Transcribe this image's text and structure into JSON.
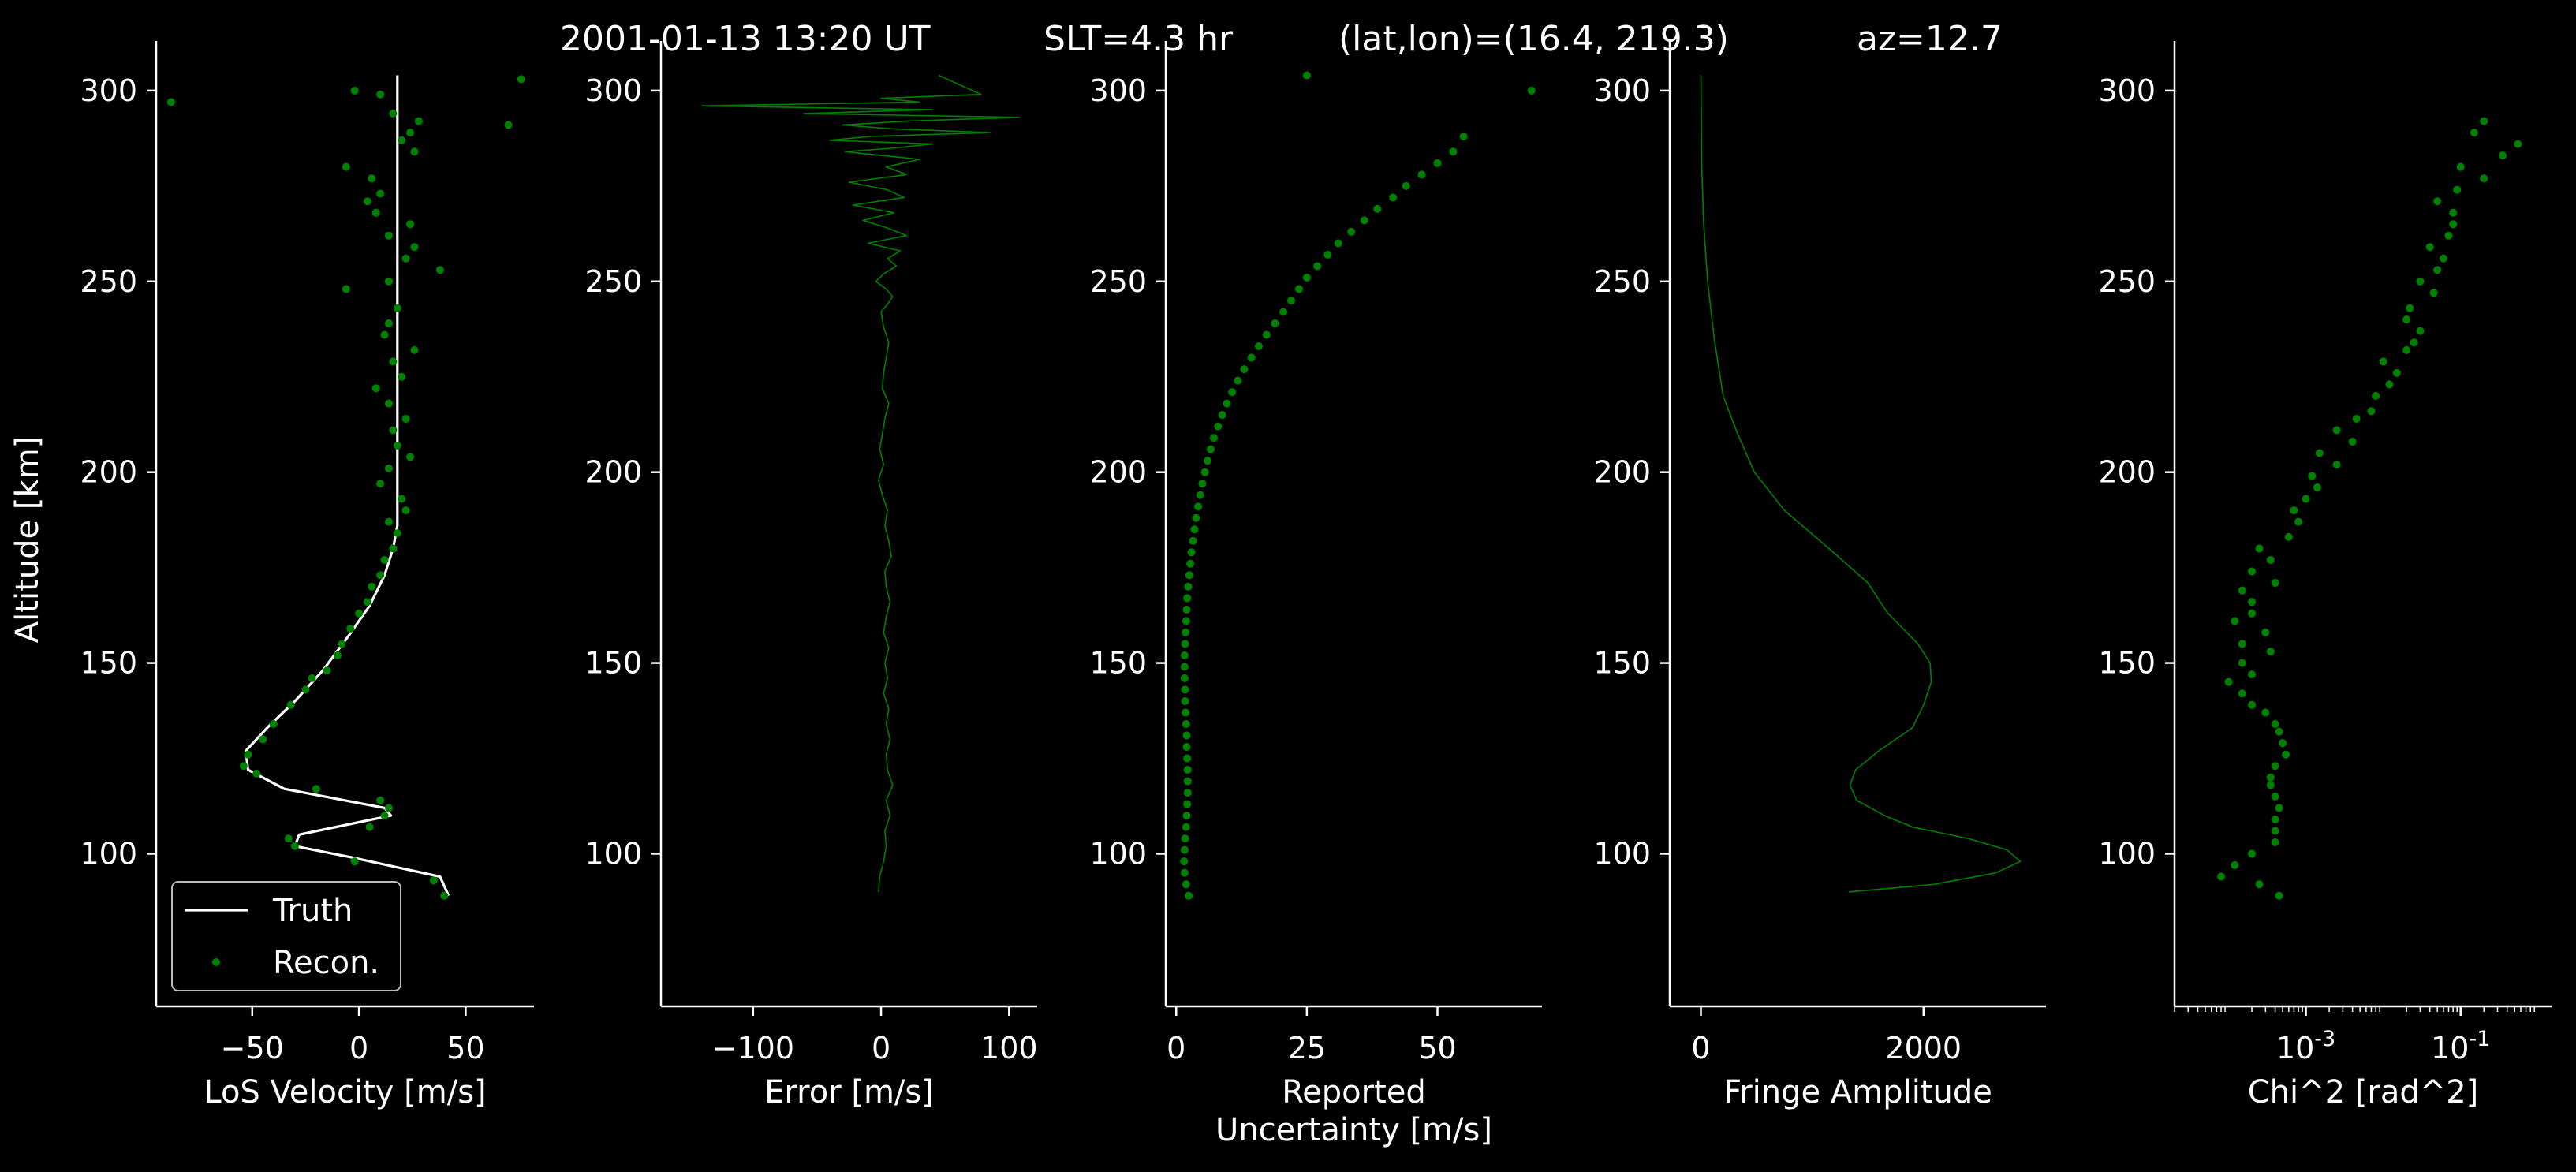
{
  "colors": {
    "background": "#000000",
    "foreground": "#ffffff",
    "truth_line": "#ffffff",
    "reconstruction": "#008000"
  },
  "title_parts": [
    "2001-01-13 13:20 UT",
    "SLT=4.3 hr",
    "(lat,lon)=(16.4, 219.3)",
    "az=12.7"
  ],
  "chart_data": [
    {
      "type": "line+scatter",
      "title": "",
      "xlabel": "LoS Velocity [m/s]",
      "ylabel": "Altitude [km]",
      "xlim": [
        -95,
        82
      ],
      "ylim": [
        60,
        313
      ],
      "xticks": [
        -50,
        0,
        50
      ],
      "yticks": [
        100,
        150,
        200,
        250,
        300
      ],
      "legend": {
        "placement": "lower-left",
        "entries": [
          "Truth",
          "Recon."
        ]
      },
      "series": [
        {
          "name": "Truth",
          "style": "line",
          "x": [
            42,
            38,
            -3,
            -30,
            -28,
            15,
            12,
            -35,
            -52,
            -53,
            -43,
            -30,
            -17,
            -5,
            5,
            12,
            16,
            18,
            18,
            18,
            18,
            18
          ],
          "y": [
            89,
            94,
            99,
            102,
            105,
            110,
            112,
            117,
            122,
            127,
            133,
            140,
            148,
            157,
            165,
            173,
            180,
            186,
            200,
            250,
            290,
            304
          ]
        },
        {
          "name": "Recon.",
          "style": "points",
          "x": [
            40,
            35,
            -2,
            -30,
            -33,
            5,
            12,
            14,
            10,
            -20,
            -48,
            -54,
            -52,
            -45,
            -40,
            -32,
            -25,
            -22,
            -15,
            -10,
            -8,
            -4,
            0,
            4,
            6,
            10,
            12,
            16,
            18,
            14,
            22,
            20,
            10,
            14,
            24,
            18,
            16,
            22,
            14,
            8,
            20,
            16,
            26,
            12,
            14,
            18,
            -6,
            14,
            38,
            22,
            26,
            14,
            24,
            8,
            4,
            10,
            6,
            -6,
            26,
            20,
            24,
            28,
            16,
            10,
            -2,
            76,
            -88,
            70
          ],
          "y": [
            89,
            93,
            98,
            102,
            104,
            107,
            110,
            112,
            114,
            117,
            121,
            123,
            126,
            130,
            134,
            139,
            143,
            146,
            148,
            152,
            155,
            159,
            163,
            166,
            170,
            173,
            177,
            180,
            184,
            187,
            190,
            193,
            197,
            201,
            204,
            207,
            211,
            214,
            218,
            222,
            225,
            229,
            232,
            236,
            239,
            243,
            248,
            250,
            253,
            256,
            259,
            262,
            265,
            268,
            271,
            273,
            277,
            280,
            284,
            287,
            289,
            292,
            294,
            299,
            300,
            303,
            297,
            291
          ]
        }
      ]
    },
    {
      "type": "line",
      "title": "",
      "xlabel": "Error [m/s]",
      "ylabel": "",
      "xlim": [
        -172,
        122
      ],
      "ylim": [
        60,
        313
      ],
      "xticks": [
        -100,
        0,
        100
      ],
      "yticks": [
        100,
        150,
        200,
        250,
        300
      ],
      "series": [
        {
          "style": "thin-line",
          "x": [
            -2,
            -1,
            2,
            4,
            3,
            7,
            4,
            9,
            5,
            4,
            7,
            4,
            6,
            2,
            5,
            3,
            6,
            2,
            4,
            7,
            4,
            3,
            8,
            6,
            3,
            5,
            1,
            -2,
            2,
            -1,
            1,
            3,
            6,
            1,
            2,
            4,
            6,
            2,
            0,
            5,
            9,
            4,
            -4,
            2,
            12,
            5,
            15,
            -10,
            20,
            5,
            -14,
            10,
            -22,
            18,
            5,
            -25,
            20,
            4,
            30,
            -28,
            12,
            40,
            -40,
            -8,
            85,
            8,
            -30,
            20,
            108,
            -60,
            40,
            -140,
            30,
            0,
            78,
            45
          ],
          "y": [
            90,
            94,
            98,
            102,
            106,
            110,
            114,
            118,
            122,
            126,
            130,
            134,
            138,
            142,
            146,
            150,
            154,
            158,
            162,
            166,
            170,
            174,
            178,
            182,
            186,
            190,
            194,
            198,
            202,
            206,
            210,
            214,
            218,
            222,
            226,
            230,
            234,
            238,
            242,
            244,
            246,
            248,
            250,
            252,
            254,
            256,
            258,
            260,
            262,
            264,
            266,
            268,
            270,
            272,
            274,
            276,
            278,
            280,
            282,
            284,
            285,
            286,
            287,
            288,
            289,
            290,
            291,
            292,
            293,
            294,
            295,
            296,
            297,
            298,
            299,
            304
          ]
        }
      ]
    },
    {
      "type": "scatter",
      "title": "",
      "xlabel": "Reported\nUncertainty [m/s]",
      "ylabel": "",
      "xlim": [
        -2,
        70
      ],
      "ylim": [
        60,
        313
      ],
      "xticks": [
        0,
        25,
        50
      ],
      "yticks": [
        100,
        150,
        200,
        250,
        300
      ],
      "series": [
        {
          "style": "points",
          "x": [
            2.4,
            1.9,
            1.6,
            1.5,
            1.6,
            1.7,
            1.9,
            2.0,
            2.1,
            2.2,
            2.2,
            2.2,
            2.1,
            2.0,
            2.0,
            1.9,
            1.8,
            1.7,
            1.7,
            1.6,
            1.6,
            1.6,
            1.7,
            1.8,
            1.9,
            2.0,
            2.1,
            2.3,
            2.5,
            2.7,
            2.9,
            3.2,
            3.5,
            3.8,
            4.2,
            4.6,
            5.0,
            5.5,
            6.0,
            6.6,
            7.2,
            8.0,
            8.8,
            9.7,
            10.7,
            11.8,
            13.0,
            14.4,
            15.8,
            17.3,
            18.9,
            20.5,
            22.0,
            23.5,
            25.0,
            27.0,
            29.0,
            31.0,
            33.5,
            36.0,
            38.5,
            41.5,
            44.0,
            47.0,
            50.0,
            53.0,
            55.0,
            25.0,
            68.0
          ],
          "y": [
            89,
            92,
            95,
            98,
            101,
            104,
            107,
            110,
            113,
            116,
            119,
            122,
            125,
            128,
            131,
            134,
            137,
            140,
            143,
            146,
            149,
            152,
            155,
            158,
            161,
            164,
            167,
            170,
            173,
            176,
            179,
            182,
            185,
            188,
            191,
            194,
            197,
            200,
            203,
            206,
            209,
            212,
            215,
            218,
            221,
            224,
            227,
            230,
            233,
            236,
            239,
            242,
            245,
            248,
            251,
            254,
            257,
            260,
            263,
            266,
            269,
            272,
            275,
            278,
            281,
            284,
            288,
            304,
            300
          ]
        }
      ]
    },
    {
      "type": "line",
      "title": "",
      "xlabel": "Fringe Amplitude",
      "ylabel": "",
      "xlim": [
        -280,
        3100
      ],
      "ylim": [
        60,
        313
      ],
      "xticks": [
        0,
        2000
      ],
      "yticks": [
        100,
        150,
        200,
        250,
        300
      ],
      "series": [
        {
          "style": "thin-line",
          "x": [
            1330,
            2100,
            2650,
            2870,
            2750,
            2400,
            1900,
            1650,
            1400,
            1340,
            1390,
            1600,
            1900,
            2000,
            2070,
            2060,
            1950,
            1680,
            1500,
            1150,
            750,
            480,
            330,
            200,
            120,
            60,
            25,
            8,
            0
          ],
          "y": [
            90,
            92,
            95,
            98,
            101,
            104,
            107,
            110,
            114,
            118,
            122,
            127,
            133,
            139,
            145,
            150,
            155,
            163,
            171,
            180,
            190,
            200,
            210,
            220,
            235,
            250,
            265,
            280,
            304
          ]
        }
      ]
    },
    {
      "type": "scatter",
      "title": "",
      "xlabel": "Chi^2 [rad^2]",
      "ylabel": "",
      "xscale": "log",
      "xlim": [
        2e-05,
        1.5
      ],
      "ylim": [
        60,
        313
      ],
      "xticks": [
        0.001,
        0.1
      ],
      "xtick_labels": [
        "10^-3",
        "10^-1"
      ],
      "yticks": [
        100,
        150,
        200,
        250,
        300
      ],
      "series": [
        {
          "style": "points",
          "x": [
            0.00045,
            0.00025,
            8e-05,
            0.00012,
            0.0002,
            0.0004,
            0.0004,
            0.0004,
            0.00045,
            0.0004,
            0.00035,
            0.00035,
            0.0004,
            0.00055,
            0.0005,
            0.00045,
            0.0004,
            0.0003,
            0.0002,
            0.00015,
            0.0001,
            0.0002,
            0.00015,
            0.00035,
            0.00015,
            0.0003,
            0.00012,
            0.0002,
            0.0002,
            0.00015,
            0.0004,
            0.0002,
            0.00035,
            0.00025,
            0.0006,
            0.0008,
            0.0007,
            0.001,
            0.0014,
            0.0012,
            0.0025,
            0.0015,
            0.004,
            0.0025,
            0.0045,
            0.007,
            0.008,
            0.012,
            0.015,
            0.01,
            0.02,
            0.025,
            0.03,
            0.02,
            0.022,
            0.045,
            0.03,
            0.05,
            0.06,
            0.04,
            0.07,
            0.08,
            0.08,
            0.05,
            0.09,
            0.2,
            0.1,
            0.35,
            0.55,
            0.15,
            0.2
          ],
          "y": [
            89,
            92,
            94,
            97,
            100,
            103,
            106,
            109,
            112,
            115,
            118,
            120,
            123,
            126,
            129,
            132,
            134,
            137,
            139,
            142,
            145,
            147,
            150,
            153,
            155,
            158,
            161,
            163,
            166,
            169,
            171,
            174,
            177,
            180,
            183,
            187,
            190,
            193,
            196,
            199,
            202,
            205,
            208,
            211,
            214,
            216,
            220,
            223,
            226,
            229,
            232,
            234,
            237,
            240,
            243,
            247,
            250,
            253,
            256,
            259,
            262,
            265,
            268,
            271,
            274,
            277,
            280,
            283,
            286,
            289,
            292
          ]
        }
      ]
    }
  ]
}
